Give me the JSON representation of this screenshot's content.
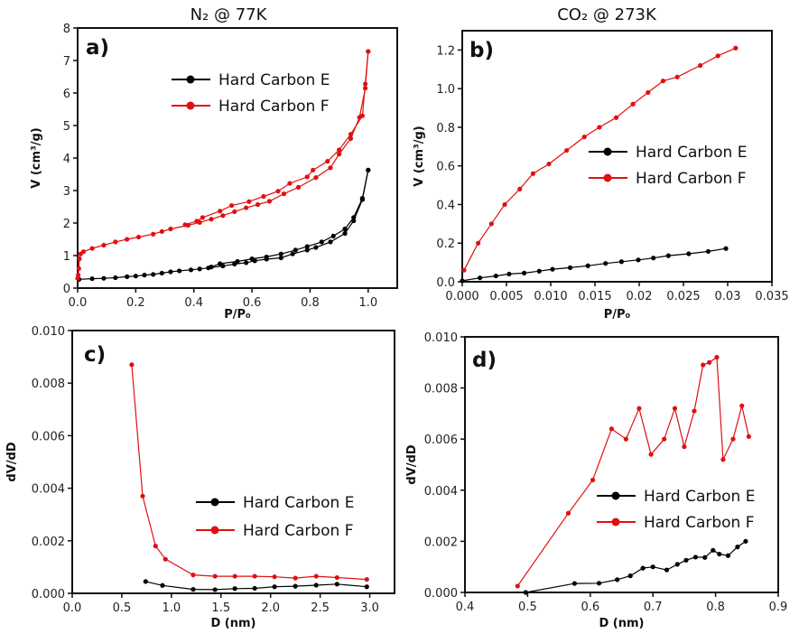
{
  "colors": {
    "series_e": "#000000",
    "series_f": "#e01010"
  },
  "chart_data": [
    {
      "type": "line",
      "panel_label": "a)",
      "title": "N₂ @ 77K",
      "xlabel": "P/P₀",
      "ylabel": "V (cm³/g)",
      "xlim": [
        0,
        1.1
      ],
      "ylim": [
        0,
        8
      ],
      "xticks": [
        "0.0",
        "0.2",
        "0.4",
        "0.6",
        "0.8",
        "1.0"
      ],
      "xtick_values": [
        0,
        0.2,
        0.4,
        0.6,
        0.8,
        1.0
      ],
      "yticks": [
        "0",
        "1",
        "2",
        "3",
        "4",
        "5",
        "6",
        "7",
        "8"
      ],
      "ytick_values": [
        0,
        1,
        2,
        3,
        4,
        5,
        6,
        7,
        8
      ],
      "legend": "top-right",
      "series": [
        {
          "name": "Hard Carbon E",
          "color": "#000000",
          "branches": [
            {
              "x": [
                0.005,
                0.05,
                0.09,
                0.13,
                0.17,
                0.2,
                0.23,
                0.26,
                0.29,
                0.32,
                0.35,
                0.39,
                0.42,
                0.45,
                0.5,
                0.54,
                0.58,
                0.61,
                0.65,
                0.7,
                0.74,
                0.79,
                0.82,
                0.87,
                0.92,
                0.95,
                0.98,
                1.0
              ],
              "y": [
                0.27,
                0.29,
                0.3,
                0.32,
                0.35,
                0.37,
                0.4,
                0.42,
                0.46,
                0.5,
                0.53,
                0.56,
                0.59,
                0.62,
                0.68,
                0.74,
                0.78,
                0.84,
                0.89,
                0.93,
                1.05,
                1.17,
                1.25,
                1.42,
                1.68,
                2.07,
                2.72,
                3.63
              ]
            },
            {
              "x": [
                1.0,
                0.98,
                0.95,
                0.92,
                0.88,
                0.84,
                0.79,
                0.75,
                0.7,
                0.65,
                0.6,
                0.55,
                0.49,
                0.46
              ],
              "y": [
                3.63,
                2.76,
                2.17,
                1.82,
                1.6,
                1.42,
                1.28,
                1.17,
                1.05,
                0.96,
                0.9,
                0.82,
                0.75,
                0.65
              ]
            }
          ]
        },
        {
          "name": "Hard Carbon F",
          "color": "#e01010",
          "branches": [
            {
              "x": [
                0.0,
                0.002,
                0.004,
                0.006,
                0.01,
                0.02,
                0.05,
                0.09,
                0.13,
                0.17,
                0.21,
                0.26,
                0.29,
                0.32,
                0.38,
                0.42,
                0.46,
                0.5,
                0.54,
                0.58,
                0.62,
                0.66,
                0.71,
                0.76,
                0.82,
                0.87,
                0.9,
                0.94,
                0.97,
                0.99,
                1.0
              ],
              "y": [
                0.3,
                0.4,
                0.6,
                0.9,
                1.05,
                1.12,
                1.22,
                1.32,
                1.42,
                1.5,
                1.57,
                1.66,
                1.74,
                1.82,
                1.93,
                2.02,
                2.12,
                2.23,
                2.35,
                2.47,
                2.57,
                2.67,
                2.9,
                3.1,
                3.4,
                3.7,
                4.12,
                4.6,
                5.25,
                6.15,
                7.28
              ]
            },
            {
              "x": [
                1.0,
                0.99,
                0.98,
                0.94,
                0.9,
                0.86,
                0.81,
                0.79,
                0.73,
                0.69,
                0.64,
                0.59,
                0.53,
                0.49,
                0.43,
                0.41,
                0.37
              ],
              "y": [
                7.28,
                6.28,
                5.3,
                4.73,
                4.25,
                3.9,
                3.63,
                3.42,
                3.22,
                2.98,
                2.82,
                2.66,
                2.54,
                2.37,
                2.17,
                2.06,
                1.95
              ]
            }
          ]
        }
      ]
    },
    {
      "type": "line",
      "panel_label": "b)",
      "title": "CO₂ @ 273K",
      "xlabel": "P/P₀",
      "ylabel": "V (cm³/g)",
      "xlim": [
        0,
        0.035
      ],
      "ylim": [
        0,
        1.3
      ],
      "xticks": [
        "0.000",
        "0.005",
        "0.010",
        "0.015",
        "0.02",
        "0.025",
        "0.03",
        "0.035"
      ],
      "xtick_values": [
        0,
        0.005,
        0.01,
        0.015,
        0.02,
        0.025,
        0.03,
        0.035
      ],
      "yticks": [
        "0.0",
        "0.2",
        "0.4",
        "0.6",
        "0.8",
        "1.0",
        "1.2"
      ],
      "ytick_values": [
        0,
        0.2,
        0.4,
        0.6,
        0.8,
        1.0,
        1.2
      ],
      "legend": "center-right",
      "series": [
        {
          "name": "Hard Carbon E",
          "color": "#000000",
          "branches": [
            {
              "x": [
                0,
                0.002,
                0.0038,
                0.0053,
                0.007,
                0.0087,
                0.0102,
                0.0122,
                0.0142,
                0.0162,
                0.018,
                0.0199,
                0.0216,
                0.0233,
                0.0256,
                0.0278,
                0.0298
              ],
              "y": [
                0.005,
                0.02,
                0.03,
                0.04,
                0.045,
                0.055,
                0.065,
                0.073,
                0.083,
                0.095,
                0.104,
                0.113,
                0.123,
                0.135,
                0.145,
                0.157,
                0.172
              ]
            }
          ]
        },
        {
          "name": "Hard Carbon F",
          "color": "#e01010",
          "branches": [
            {
              "x": [
                0.0002,
                0.0018,
                0.0033,
                0.0048,
                0.0065,
                0.008,
                0.0098,
                0.0118,
                0.0138,
                0.0155,
                0.0174,
                0.0193,
                0.021,
                0.0227,
                0.0243,
                0.0269,
                0.0289,
                0.0309
              ],
              "y": [
                0.06,
                0.2,
                0.3,
                0.4,
                0.48,
                0.56,
                0.61,
                0.68,
                0.75,
                0.8,
                0.85,
                0.92,
                0.98,
                1.04,
                1.06,
                1.12,
                1.17,
                1.21
              ]
            }
          ]
        }
      ]
    },
    {
      "type": "line",
      "panel_label": "c)",
      "xlabel": "D (nm)",
      "ylabel": "dV/dD",
      "xlim": [
        0,
        3.25
      ],
      "ylim": [
        0,
        0.01
      ],
      "xticks": [
        "0.0",
        "0.5",
        "1.0",
        "1.5",
        "2.0",
        "2.5",
        "3.0"
      ],
      "xtick_values": [
        0,
        0.5,
        1,
        1.5,
        2,
        2.5,
        3
      ],
      "yticks": [
        "0.000",
        "0.002",
        "0.004",
        "0.006",
        "0.008",
        "0.010"
      ],
      "ytick_values": [
        0,
        0.002,
        0.004,
        0.006,
        0.008,
        0.01
      ],
      "legend": "bottom-right",
      "series": [
        {
          "name": "Hard Carbon E",
          "color": "#000000",
          "branches": [
            {
              "x": [
                0.74,
                0.91,
                1.22,
                1.44,
                1.64,
                1.84,
                2.04,
                2.25,
                2.46,
                2.67,
                2.97
              ],
              "y": [
                0.00045,
                0.0003,
                0.00015,
                0.00014,
                0.00018,
                0.00019,
                0.00025,
                0.00027,
                0.00031,
                0.00035,
                0.00025
              ]
            }
          ]
        },
        {
          "name": "Hard Carbon F",
          "color": "#e01010",
          "branches": [
            {
              "x": [
                0.6,
                0.71,
                0.84,
                0.94,
                1.22,
                1.44,
                1.64,
                1.84,
                2.04,
                2.25,
                2.46,
                2.67,
                2.97
              ],
              "y": [
                0.0087,
                0.0037,
                0.0018,
                0.0013,
                0.0007,
                0.00065,
                0.00065,
                0.00065,
                0.00063,
                0.00058,
                0.00065,
                0.0006,
                0.00053
              ]
            }
          ]
        }
      ]
    },
    {
      "type": "line",
      "panel_label": "d)",
      "xlabel": "D (nm)",
      "ylabel": "dV/dD",
      "xlim": [
        0.4,
        0.9
      ],
      "ylim": [
        0,
        0.01
      ],
      "xticks": [
        "0.4",
        "0.5",
        "0.6",
        "0.7",
        "0.8",
        "0.9"
      ],
      "xtick_values": [
        0.4,
        0.5,
        0.6,
        0.7,
        0.8,
        0.9
      ],
      "yticks": [
        "0.000",
        "0.002",
        "0.004",
        "0.006",
        "0.008",
        "0.010"
      ],
      "ytick_values": [
        0,
        0.002,
        0.004,
        0.006,
        0.008,
        0.01
      ],
      "legend": "center-right",
      "series": [
        {
          "name": "Hard Carbon E",
          "color": "#000000",
          "branches": [
            {
              "x": [
                0.497,
                0.575,
                0.614,
                0.643,
                0.664,
                0.684,
                0.7,
                0.722,
                0.739,
                0.753,
                0.768,
                0.783,
                0.796,
                0.806,
                0.82,
                0.835,
                0.848
              ],
              "y": [
                0,
                0.00035,
                0.00036,
                0.0005,
                0.00065,
                0.00095,
                0.001,
                0.00088,
                0.0011,
                0.00126,
                0.00138,
                0.00137,
                0.00165,
                0.0015,
                0.00144,
                0.00178,
                0.002
              ]
            }
          ]
        },
        {
          "name": "Hard Carbon F",
          "color": "#e01010",
          "branches": [
            {
              "x": [
                0.484,
                0.565,
                0.604,
                0.634,
                0.657,
                0.678,
                0.697,
                0.718,
                0.735,
                0.75,
                0.766,
                0.78,
                0.79,
                0.802,
                0.812,
                0.828,
                0.842,
                0.853
              ],
              "y": [
                0.00025,
                0.0031,
                0.0044,
                0.0064,
                0.006,
                0.0072,
                0.0054,
                0.006,
                0.0072,
                0.0057,
                0.0071,
                0.0089,
                0.009,
                0.0092,
                0.0052,
                0.006,
                0.0073,
                0.0061
              ]
            }
          ]
        }
      ]
    }
  ]
}
